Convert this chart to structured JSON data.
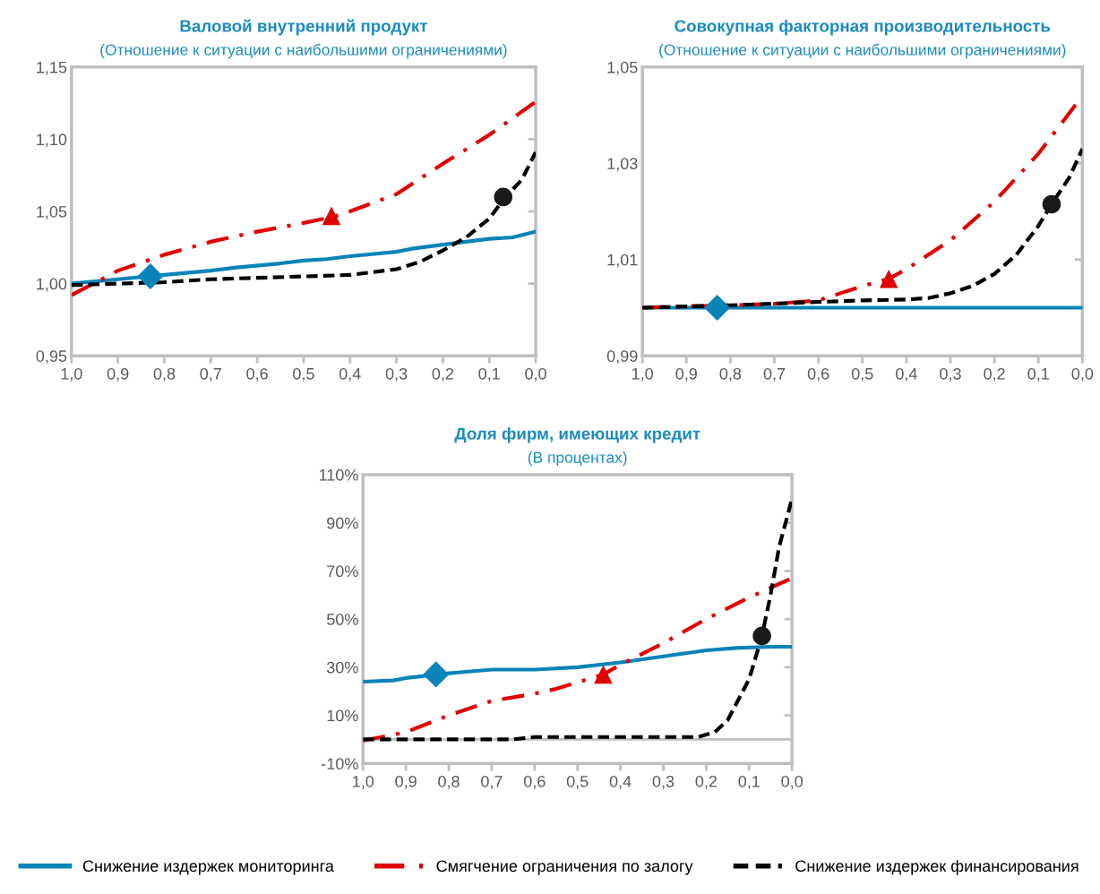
{
  "chart_data": [
    {
      "type": "line",
      "title": "Валовой внутренний продукт",
      "subtitle": "(Отношение к ситуации с наибольшими ограничениями)",
      "xlim": [
        1.0,
        0.0
      ],
      "xticks": [
        {
          "value": 1.0,
          "label": "1,0"
        },
        {
          "value": 0.9,
          "label": "0,9"
        },
        {
          "value": 0.8,
          "label": "0,8"
        },
        {
          "value": 0.7,
          "label": "0,7"
        },
        {
          "value": 0.6,
          "label": "0,6"
        },
        {
          "value": 0.5,
          "label": "0,5"
        },
        {
          "value": 0.4,
          "label": "0,4"
        },
        {
          "value": 0.3,
          "label": "0,3"
        },
        {
          "value": 0.2,
          "label": "0,2"
        },
        {
          "value": 0.1,
          "label": "0,1"
        },
        {
          "value": 0.0,
          "label": "0,0"
        }
      ],
      "ylim": [
        0.95,
        1.15
      ],
      "yticks": [
        {
          "value": 0.95,
          "label": "0,95"
        },
        {
          "value": 1.0,
          "label": "1,00"
        },
        {
          "value": 1.05,
          "label": "1,05"
        },
        {
          "value": 1.1,
          "label": "1,10"
        },
        {
          "value": 1.15,
          "label": "1,15"
        }
      ],
      "grid": false,
      "legend": false,
      "series": [
        {
          "type": "line",
          "color": "#0a84b8",
          "line_style": "solid",
          "x": [
            1.0,
            0.9,
            0.8,
            0.7,
            0.65,
            0.55,
            0.5,
            0.45,
            0.4,
            0.3,
            0.27,
            0.2,
            0.1,
            0.05,
            0.0
          ],
          "values": [
            1.0,
            1.003,
            1.006,
            1.009,
            1.011,
            1.014,
            1.016,
            1.017,
            1.019,
            1.022,
            1.024,
            1.027,
            1.031,
            1.032,
            1.036
          ]
        },
        {
          "type": "line",
          "color": "#e00000",
          "line_style": "dashdot",
          "x": [
            1.0,
            0.9,
            0.8,
            0.7,
            0.6,
            0.5,
            0.44,
            0.4,
            0.3,
            0.2,
            0.1,
            0.0
          ],
          "values": [
            0.992,
            1.009,
            1.02,
            1.029,
            1.036,
            1.042,
            1.046,
            1.05,
            1.062,
            1.083,
            1.103,
            1.126
          ]
        },
        {
          "type": "line",
          "color": "#000000",
          "line_style": "dashed",
          "x": [
            1.0,
            0.9,
            0.8,
            0.7,
            0.6,
            0.5,
            0.4,
            0.3,
            0.25,
            0.2,
            0.15,
            0.1,
            0.07,
            0.03,
            0.0
          ],
          "values": [
            0.999,
            1.0,
            1.001,
            1.003,
            1.004,
            1.005,
            1.006,
            1.01,
            1.015,
            1.023,
            1.032,
            1.045,
            1.058,
            1.072,
            1.091
          ]
        },
        {
          "type": "scatter",
          "color": "#0a84b8",
          "marker": "diamond",
          "x": [
            0.83
          ],
          "values": [
            1.005
          ]
        },
        {
          "type": "scatter",
          "color": "#e00000",
          "marker": "triangle",
          "x": [
            0.44
          ],
          "values": [
            1.047
          ]
        },
        {
          "type": "scatter",
          "color": "#1a1a1a",
          "marker": "circle",
          "x": [
            0.07
          ],
          "values": [
            1.06
          ]
        }
      ]
    },
    {
      "type": "line",
      "title": "Совокупная факторная производительность",
      "subtitle": "(Отношение к ситуации с наибольшими ограничениями)",
      "xlim": [
        1.0,
        0.0
      ],
      "xticks": [
        {
          "value": 1.0,
          "label": "1,0"
        },
        {
          "value": 0.9,
          "label": "0,9"
        },
        {
          "value": 0.8,
          "label": "0,8"
        },
        {
          "value": 0.7,
          "label": "0,7"
        },
        {
          "value": 0.6,
          "label": "0,6"
        },
        {
          "value": 0.5,
          "label": "0,5"
        },
        {
          "value": 0.4,
          "label": "0,4"
        },
        {
          "value": 0.3,
          "label": "0,3"
        },
        {
          "value": 0.2,
          "label": "0,2"
        },
        {
          "value": 0.1,
          "label": "0,1"
        },
        {
          "value": 0.0,
          "label": "0,0"
        }
      ],
      "ylim": [
        0.99,
        1.05
      ],
      "yticks": [
        {
          "value": 0.99,
          "label": "0,99"
        },
        {
          "value": 1.01,
          "label": "1,01"
        },
        {
          "value": 1.03,
          "label": "1,03"
        },
        {
          "value": 1.05,
          "label": "1,05"
        }
      ],
      "grid": false,
      "legend": false,
      "series": [
        {
          "type": "line",
          "color": "#0a84b8",
          "line_style": "solid",
          "x": [
            1.0,
            0.0
          ],
          "values": [
            1.0,
            1.0
          ]
        },
        {
          "type": "line",
          "color": "#e00000",
          "line_style": "dashdot",
          "x": [
            1.0,
            0.9,
            0.8,
            0.7,
            0.6,
            0.55,
            0.5,
            0.44,
            0.4,
            0.3,
            0.2,
            0.1,
            0.0
          ],
          "values": [
            1.0,
            1.0003,
            1.0005,
            1.0008,
            1.0015,
            1.003,
            1.0045,
            1.006,
            1.008,
            1.014,
            1.022,
            1.032,
            1.044
          ]
        },
        {
          "type": "line",
          "color": "#000000",
          "line_style": "dashed",
          "x": [
            1.0,
            0.8,
            0.6,
            0.5,
            0.4,
            0.35,
            0.3,
            0.25,
            0.2,
            0.15,
            0.1,
            0.07,
            0.03,
            0.0
          ],
          "values": [
            1.0,
            1.0005,
            1.0012,
            1.0015,
            1.0017,
            1.002,
            1.003,
            1.0045,
            1.007,
            1.011,
            1.017,
            1.0215,
            1.027,
            1.033
          ]
        },
        {
          "type": "scatter",
          "color": "#0a84b8",
          "marker": "diamond",
          "x": [
            0.83
          ],
          "values": [
            1.0
          ]
        },
        {
          "type": "scatter",
          "color": "#e00000",
          "marker": "triangle",
          "x": [
            0.44
          ],
          "values": [
            1.006
          ]
        },
        {
          "type": "scatter",
          "color": "#1a1a1a",
          "marker": "circle",
          "x": [
            0.07
          ],
          "values": [
            1.0215
          ]
        }
      ]
    },
    {
      "type": "line",
      "title": "Доля фирм, имеющих кредит",
      "subtitle": "(В процентах)",
      "xlim": [
        1.0,
        0.0
      ],
      "xticks": [
        {
          "value": 1.0,
          "label": "1,0"
        },
        {
          "value": 0.9,
          "label": "0,9"
        },
        {
          "value": 0.8,
          "label": "0,8"
        },
        {
          "value": 0.7,
          "label": "0,7"
        },
        {
          "value": 0.6,
          "label": "0,6"
        },
        {
          "value": 0.5,
          "label": "0,5"
        },
        {
          "value": 0.4,
          "label": "0,4"
        },
        {
          "value": 0.3,
          "label": "0,3"
        },
        {
          "value": 0.2,
          "label": "0,2"
        },
        {
          "value": 0.1,
          "label": "0,1"
        },
        {
          "value": 0.0,
          "label": "0,0"
        }
      ],
      "ylim": [
        -10,
        110
      ],
      "yticks": [
        {
          "value": -10,
          "label": "-10%"
        },
        {
          "value": 10,
          "label": "10%"
        },
        {
          "value": 30,
          "label": "30%"
        },
        {
          "value": 50,
          "label": "50%"
        },
        {
          "value": 70,
          "label": "70%"
        },
        {
          "value": 90,
          "label": "90%"
        },
        {
          "value": 110,
          "label": "110%"
        }
      ],
      "grid": false,
      "legend": "bottom",
      "ref_lines": [
        {
          "axis": "y",
          "value": 0,
          "color": "#bfbfbf"
        }
      ],
      "series": [
        {
          "type": "line",
          "name": "Снижение издержек мониторинга",
          "color": "#0a84b8",
          "line_style": "solid",
          "x": [
            1.0,
            0.93,
            0.9,
            0.8,
            0.7,
            0.6,
            0.5,
            0.4,
            0.3,
            0.2,
            0.13,
            0.05,
            0.0
          ],
          "values": [
            24,
            24.5,
            25.5,
            27.5,
            29,
            29,
            30,
            32,
            34.5,
            37,
            38,
            38.5,
            38.5
          ]
        },
        {
          "type": "line",
          "name": "Смягчение ограничения по залогу",
          "color": "#e00000",
          "line_style": "dashdot",
          "x": [
            1.0,
            0.9,
            0.8,
            0.7,
            0.6,
            0.55,
            0.44,
            0.4,
            0.3,
            0.2,
            0.1,
            0.0
          ],
          "values": [
            -0.5,
            3,
            10,
            16,
            19,
            21,
            27,
            31,
            40,
            50,
            59,
            67
          ]
        },
        {
          "type": "line",
          "name": "Снижение издержек финансирования",
          "color": "#000000",
          "line_style": "dashed",
          "x": [
            1.0,
            0.65,
            0.6,
            0.22,
            0.18,
            0.15,
            0.1,
            0.07,
            0.05,
            0.03,
            0.0
          ],
          "values": [
            0,
            0,
            1,
            1,
            3,
            8,
            25,
            43,
            60,
            80,
            100
          ]
        },
        {
          "type": "scatter",
          "color": "#0a84b8",
          "marker": "diamond",
          "x": [
            0.83
          ],
          "values": [
            27
          ]
        },
        {
          "type": "scatter",
          "color": "#e00000",
          "marker": "triangle",
          "x": [
            0.44
          ],
          "values": [
            27
          ]
        },
        {
          "type": "scatter",
          "color": "#1a1a1a",
          "marker": "circle",
          "x": [
            0.07
          ],
          "values": [
            43
          ]
        }
      ]
    }
  ]
}
